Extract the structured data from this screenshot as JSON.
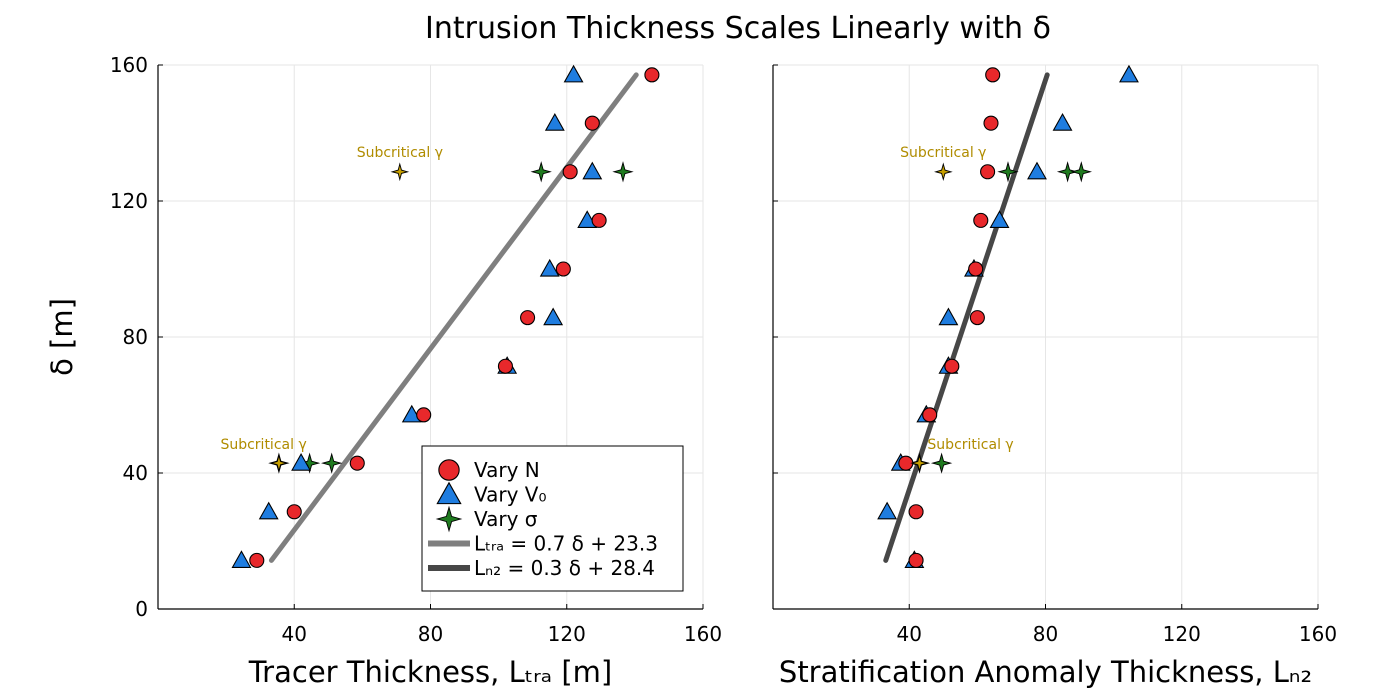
{
  "title": "Intrusion Thickness Scales Linearly with δ",
  "colors": {
    "vary_n": "#e8282b",
    "vary_v0": "#1f7de0",
    "vary_sigma": "#1f7a1f",
    "subcritical": "#c8a000",
    "subcritical_label": "#b08c00",
    "fit_tra": "#7f7f7f",
    "fit_n2": "#474747"
  },
  "legend": {
    "placement": "bottom-right of left panel",
    "entries": [
      {
        "key": "vary_n",
        "label": "Vary N",
        "marker": "circle"
      },
      {
        "key": "vary_v0",
        "label": "Vary V₀",
        "marker": "triangle"
      },
      {
        "key": "vary_sigma",
        "label": "Vary σ",
        "marker": "star4"
      },
      {
        "key": "fit_tra",
        "label": "Lₜᵣₐ = 0.7 δ + 23.3",
        "marker": "line"
      },
      {
        "key": "fit_n2",
        "label": "Lₙ₂ = 0.3 δ + 28.4",
        "marker": "line"
      }
    ]
  },
  "chart_data": [
    {
      "type": "scatter",
      "xlabel": "Tracer Thickness, Lₜᵣₐ [m]",
      "ylabel": "δ [m]",
      "xlim": [
        0,
        160
      ],
      "ylim": [
        0,
        160
      ],
      "xticks": [
        40,
        80,
        120,
        160
      ],
      "yticks": [
        0,
        40,
        80,
        120,
        160
      ],
      "grid": true,
      "series": [
        {
          "key": "vary_n",
          "name": "Vary N",
          "marker": "circle",
          "points": [
            [
              29,
              14.3
            ],
            [
              40,
              28.6
            ],
            [
              58.5,
              42.9
            ],
            [
              78,
              57.1
            ],
            [
              102,
              71.4
            ],
            [
              108.5,
              85.7
            ],
            [
              119,
              100
            ],
            [
              129.5,
              114.3
            ],
            [
              121,
              128.6
            ],
            [
              127.5,
              142.9
            ],
            [
              145,
              157.1
            ]
          ]
        },
        {
          "key": "vary_v0",
          "name": "Vary V₀",
          "marker": "triangle",
          "points": [
            [
              24.5,
              14.3
            ],
            [
              32.5,
              28.6
            ],
            [
              42,
              42.9
            ],
            [
              74.5,
              57.1
            ],
            [
              102.5,
              71.4
            ],
            [
              116,
              85.7
            ],
            [
              115,
              100
            ],
            [
              126,
              114.3
            ],
            [
              127.5,
              128.6
            ],
            [
              116.5,
              142.9
            ],
            [
              122,
              157.1
            ]
          ]
        },
        {
          "key": "vary_sigma",
          "name": "Vary σ",
          "marker": "star4",
          "points": [
            [
              35.5,
              42.9
            ],
            [
              44.5,
              42.9
            ],
            [
              51,
              42.9
            ],
            [
              112.5,
              128.6
            ],
            [
              136.5,
              128.6
            ]
          ]
        },
        {
          "key": "subcritical",
          "marker": "star4",
          "points": [
            [
              35.5,
              42.9
            ],
            [
              71,
              128.6
            ]
          ]
        },
        {
          "key": "fit_tra",
          "name": "Lₜᵣₐ = 0.7 δ + 23.3",
          "type": "line",
          "points": [
            [
              33.3,
              14.3
            ],
            [
              140.4,
              157.1
            ]
          ]
        }
      ],
      "annotations": [
        {
          "text": "Subcritical γ",
          "x": 71,
          "y": 133
        },
        {
          "text": "Subcritical γ",
          "x": 31,
          "y": 47
        }
      ]
    },
    {
      "type": "scatter",
      "xlabel": "Stratification Anomaly Thickness, Lₙ₂",
      "ylabel": "",
      "xlim": [
        0,
        160
      ],
      "ylim": [
        0,
        160
      ],
      "xticks": [
        40,
        80,
        120,
        160
      ],
      "yticks": [
        0,
        40,
        80,
        120,
        160
      ],
      "grid": true,
      "series": [
        {
          "key": "vary_n",
          "name": "Vary N",
          "marker": "circle",
          "points": [
            [
              42,
              14.3
            ],
            [
              42,
              28.6
            ],
            [
              39,
              42.9
            ],
            [
              46,
              57.1
            ],
            [
              52.5,
              71.4
            ],
            [
              60,
              85.7
            ],
            [
              59.5,
              100
            ],
            [
              61,
              114.3
            ],
            [
              63,
              128.6
            ],
            [
              64,
              142.9
            ],
            [
              64.5,
              157.1
            ]
          ]
        },
        {
          "key": "vary_v0",
          "name": "Vary V₀",
          "marker": "triangle",
          "points": [
            [
              41.5,
              14.3
            ],
            [
              33.5,
              28.6
            ],
            [
              37.5,
              42.9
            ],
            [
              45,
              57.1
            ],
            [
              51.5,
              71.4
            ],
            [
              51.5,
              85.7
            ],
            [
              59,
              100
            ],
            [
              66.5,
              114.3
            ],
            [
              77.5,
              128.6
            ],
            [
              85,
              142.9
            ],
            [
              104.5,
              157.1
            ]
          ]
        },
        {
          "key": "vary_sigma",
          "name": "Vary σ",
          "marker": "star4",
          "points": [
            [
              43,
              42.9
            ],
            [
              49.5,
              42.9
            ],
            [
              69,
              128.6
            ],
            [
              86.5,
              128.6
            ],
            [
              90.5,
              128.6
            ]
          ]
        },
        {
          "key": "subcritical",
          "marker": "star4",
          "points": [
            [
              43,
              42.9
            ],
            [
              50,
              128.6
            ]
          ]
        },
        {
          "key": "fit_n2",
          "name": "Lₙ₂ = 0.3 δ + 28.4",
          "type": "line",
          "points": [
            [
              33.1,
              14.3
            ],
            [
              80.5,
              157.1
            ]
          ]
        }
      ],
      "annotations": [
        {
          "text": "Subcritical γ",
          "x": 50,
          "y": 133
        },
        {
          "text": "Subcritical γ",
          "x": 58,
          "y": 47
        }
      ]
    }
  ]
}
